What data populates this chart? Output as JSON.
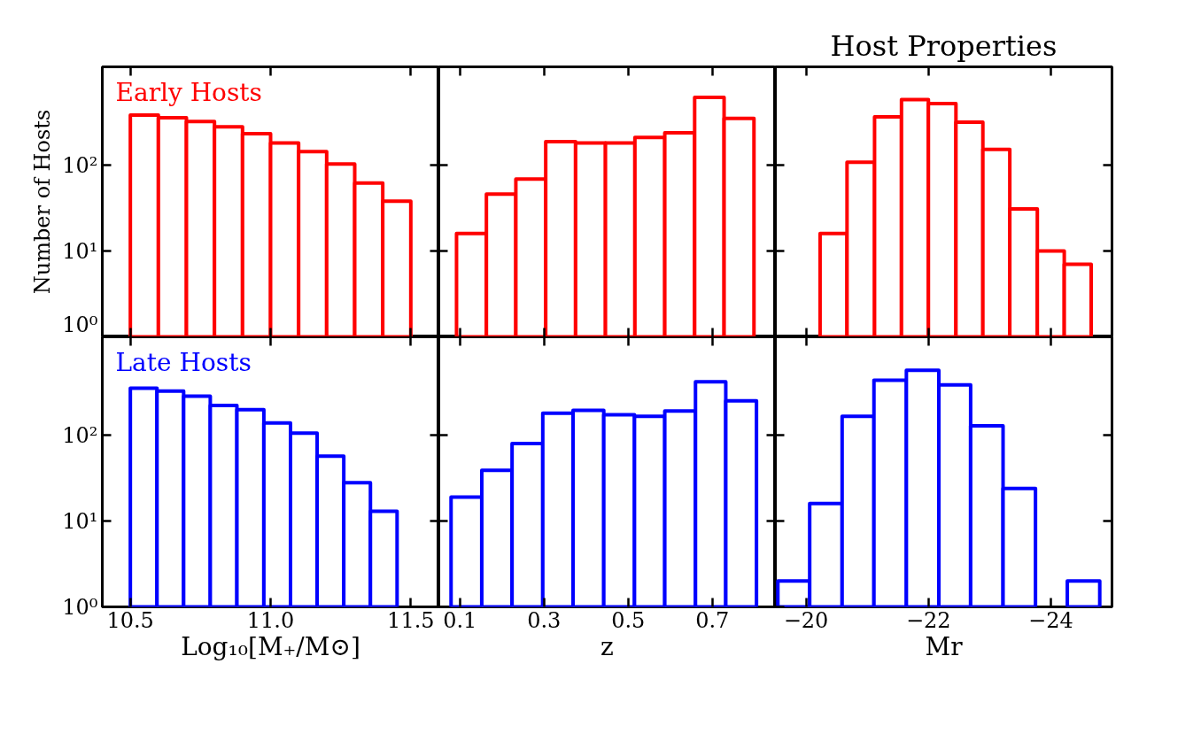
{
  "chart_data": [
    {
      "type": "histogram",
      "ylabel": "Number of Hosts",
      "log": "y",
      "tick_labels": "y",
      "xlim": [
        10.4,
        11.6
      ],
      "xticks": [
        {
          "value": 10.5,
          "label": null
        },
        {
          "value": 11,
          "label": null
        },
        {
          "value": 11.5,
          "label": null
        }
      ],
      "ylim": [
        1,
        1400
      ],
      "yticks": [
        {
          "value": 1,
          "label": "10⁰"
        },
        {
          "value": 10,
          "label": "10¹"
        },
        {
          "value": 100,
          "label": "10²"
        }
      ],
      "bins": [
        10.5,
        10.6,
        10.7,
        10.8,
        10.9,
        11.0,
        11.1,
        11.2,
        11.3,
        11.4,
        11.5
      ],
      "series": [
        {
          "name": "Early Hosts",
          "color": "#ff0000",
          "values": [
            384,
            358,
            323,
            280,
            233,
            182,
            144,
            103,
            62,
            38
          ]
        }
      ]
    },
    {
      "type": "histogram",
      "log": "y",
      "tick_labels": false,
      "xlim": [
        0.05,
        0.85
      ],
      "xticks": [
        {
          "value": 0.1,
          "label": null
        },
        {
          "value": 0.3,
          "label": null
        },
        {
          "value": 0.5,
          "label": null
        },
        {
          "value": 0.7,
          "label": null
        }
      ],
      "ylim": [
        1,
        1400
      ],
      "yticks": [
        {
          "value": 1,
          "label": null
        },
        {
          "value": 10,
          "label": null
        },
        {
          "value": 100,
          "label": null
        }
      ],
      "bins": [
        0.092,
        0.163,
        0.233,
        0.304,
        0.375,
        0.446,
        0.516,
        0.587,
        0.658,
        0.728,
        0.799
      ],
      "series": [
        {
          "color": "#ff0000",
          "values": [
            16,
            46,
            69,
            188,
            182,
            182,
            211,
            238,
            616,
            352
          ]
        }
      ]
    },
    {
      "type": "histogram",
      "title": "Host Properties",
      "log": "y",
      "tick_labels": false,
      "xlim": [
        -19.5,
        -25
      ],
      "xticks": [
        {
          "value": -20,
          "label": null
        },
        {
          "value": -22,
          "label": null
        },
        {
          "value": -24,
          "label": null
        }
      ],
      "ylim": [
        1,
        1400
      ],
      "yticks": [
        {
          "value": 1,
          "label": null
        },
        {
          "value": 10,
          "label": null
        },
        {
          "value": 100,
          "label": null
        }
      ],
      "bins": [
        -20.23,
        -20.67,
        -21.12,
        -21.56,
        -22.0,
        -22.45,
        -22.89,
        -23.33,
        -23.78,
        -24.22,
        -24.66
      ],
      "series": [
        {
          "color": "#ff0000",
          "values": [
            16,
            108,
            365,
            581,
            522,
            317,
            153,
            31,
            10,
            7
          ]
        }
      ]
    },
    {
      "type": "histogram",
      "xlabel": "Log₁₀[M₊/M⊙]",
      "log": "y",
      "xlim": [
        10.4,
        11.6
      ],
      "xticks": [
        10.5,
        {
          "value": 11,
          "label": "11.0"
        },
        11.5
      ],
      "ylim": [
        1,
        1400
      ],
      "yticks": [
        {
          "value": 1,
          "label": "10⁰"
        },
        {
          "value": 10,
          "label": "10¹"
        },
        {
          "value": 100,
          "label": "10²"
        }
      ],
      "bins": [
        10.5,
        10.595,
        10.69,
        10.785,
        10.88,
        10.976,
        11.071,
        11.166,
        11.261,
        11.356,
        11.451
      ],
      "series": [
        {
          "name": "Late Hosts",
          "color": "#0000ff",
          "values": [
            354,
            327,
            285,
            222,
            198,
            139,
            106,
            57,
            28,
            13
          ]
        }
      ]
    },
    {
      "type": "histogram",
      "xlabel": "z",
      "log": "y",
      "tick_labels": "x",
      "xlim": [
        0.05,
        0.85
      ],
      "xticks": [
        0.1,
        0.3,
        0.5,
        0.7
      ],
      "ylim": [
        1,
        1400
      ],
      "yticks": [
        {
          "value": 1,
          "label": null
        },
        {
          "value": 10,
          "label": null
        },
        {
          "value": 100,
          "label": null
        }
      ],
      "bins": [
        0.079,
        0.152,
        0.224,
        0.297,
        0.369,
        0.442,
        0.515,
        0.587,
        0.66,
        0.732,
        0.805
      ],
      "series": [
        {
          "color": "#0000ff",
          "values": [
            19,
            39,
            80,
            181,
            195,
            173,
            166,
            191,
            420,
            251
          ]
        }
      ]
    },
    {
      "type": "histogram",
      "xlabel": "Mr",
      "log": "y",
      "tick_labels": "x",
      "xlim": [
        -19.5,
        -25
      ],
      "xticks": [
        {
          "value": -20,
          "label": "−20"
        },
        {
          "value": -22,
          "label": "−22"
        },
        {
          "value": -24,
          "label": "−24"
        }
      ],
      "ylim": [
        1,
        1400
      ],
      "yticks": [
        {
          "value": 1,
          "label": null
        },
        {
          "value": 10,
          "label": null
        },
        {
          "value": 100,
          "label": null
        }
      ],
      "bins": [
        -19.54,
        -20.06,
        -20.59,
        -21.11,
        -21.64,
        -22.17,
        -22.69,
        -23.22,
        -23.75,
        -24.27,
        -24.8
      ],
      "series": [
        {
          "color": "#0000ff",
          "values": [
            2,
            16,
            166,
            436,
            571,
            385,
            129,
            24,
            null,
            2
          ]
        }
      ]
    }
  ]
}
